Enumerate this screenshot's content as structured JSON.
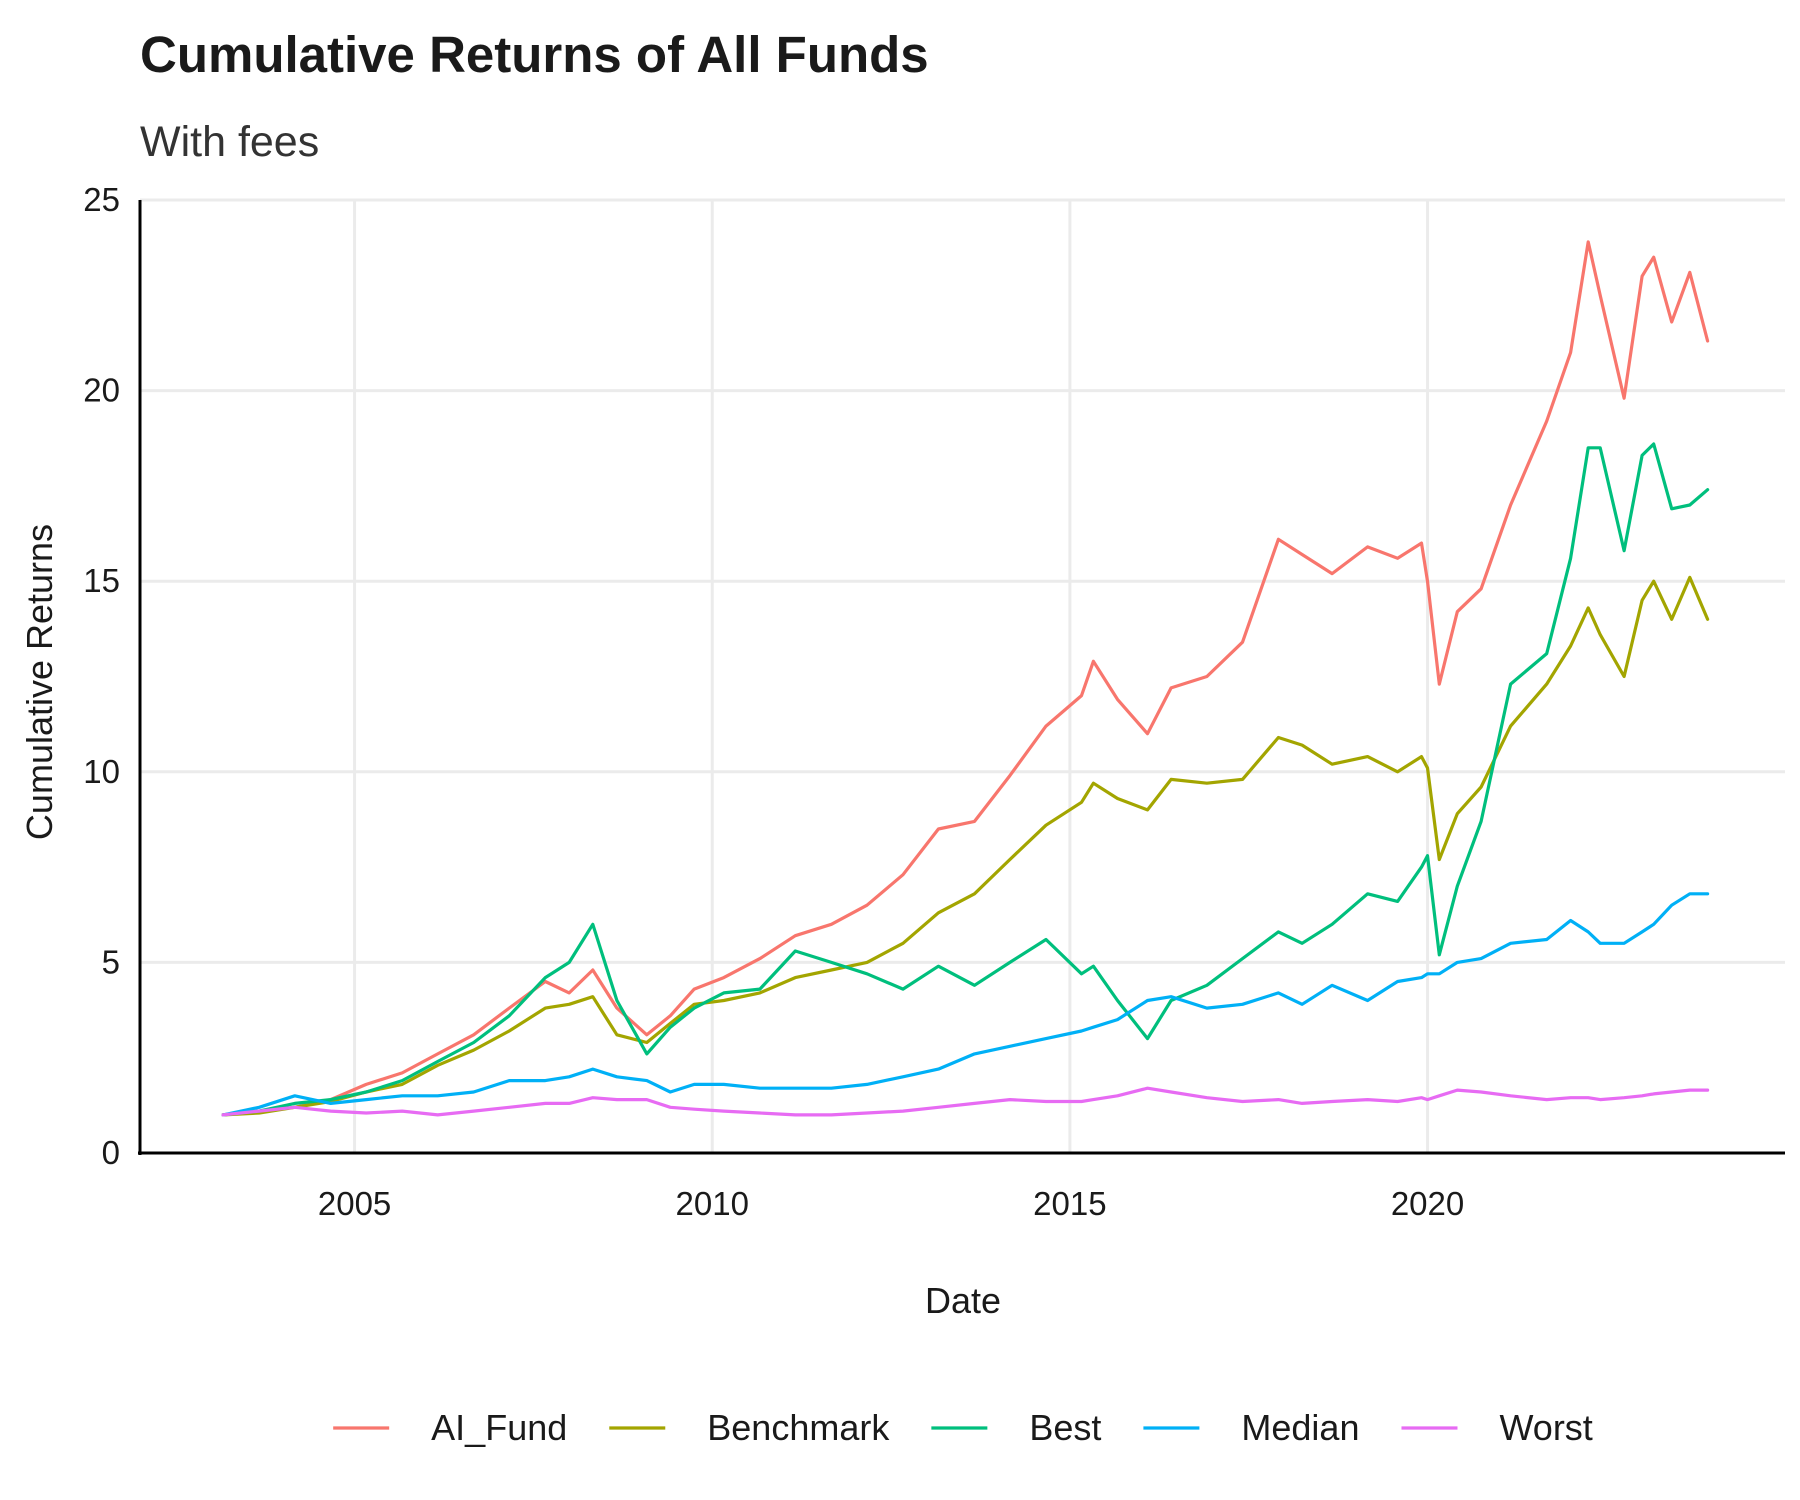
{
  "chart_data": {
    "type": "line",
    "title": "Cumulative Returns of All Funds",
    "subtitle": "With fees",
    "xlabel": "Date",
    "ylabel": "Cumulative Returns",
    "x_ticks": [
      "2005",
      "2010",
      "2015",
      "2020"
    ],
    "y_ticks": [
      "0",
      "5",
      "10",
      "15",
      "20",
      "25"
    ],
    "xlim": [
      "2002-01-01",
      "2024-12-31"
    ],
    "ylim": [
      0,
      25
    ],
    "grid": true,
    "legend_position": "bottom",
    "series": [
      {
        "name": "AI_Fund",
        "color": "#F8766D",
        "points": [
          [
            "2003-03-01",
            1.0
          ],
          [
            "2003-09-01",
            1.1
          ],
          [
            "2004-03-01",
            1.2
          ],
          [
            "2004-09-01",
            1.4
          ],
          [
            "2005-03-01",
            1.8
          ],
          [
            "2005-09-01",
            2.1
          ],
          [
            "2006-03-01",
            2.6
          ],
          [
            "2006-09-01",
            3.1
          ],
          [
            "2007-03-01",
            3.8
          ],
          [
            "2007-09-01",
            4.5
          ],
          [
            "2008-01-01",
            4.2
          ],
          [
            "2008-05-01",
            4.8
          ],
          [
            "2008-09-01",
            3.8
          ],
          [
            "2009-02-01",
            3.1
          ],
          [
            "2009-06-01",
            3.6
          ],
          [
            "2009-10-01",
            4.3
          ],
          [
            "2010-03-01",
            4.6
          ],
          [
            "2010-09-01",
            5.1
          ],
          [
            "2011-03-01",
            5.7
          ],
          [
            "2011-09-01",
            6.0
          ],
          [
            "2012-03-01",
            6.5
          ],
          [
            "2012-09-01",
            7.3
          ],
          [
            "2013-03-01",
            8.5
          ],
          [
            "2013-09-01",
            8.7
          ],
          [
            "2014-03-01",
            9.9
          ],
          [
            "2014-09-01",
            11.2
          ],
          [
            "2015-03-01",
            12.0
          ],
          [
            "2015-05-01",
            12.9
          ],
          [
            "2015-09-01",
            11.9
          ],
          [
            "2016-02-01",
            11.0
          ],
          [
            "2016-06-01",
            12.2
          ],
          [
            "2016-12-01",
            12.5
          ],
          [
            "2017-06-01",
            13.4
          ],
          [
            "2017-12-01",
            16.1
          ],
          [
            "2018-04-01",
            15.7
          ],
          [
            "2018-09-01",
            15.2
          ],
          [
            "2019-03-01",
            15.9
          ],
          [
            "2019-08-01",
            15.6
          ],
          [
            "2019-12-01",
            16.0
          ],
          [
            "2020-01-01",
            15.0
          ],
          [
            "2020-03-01",
            12.3
          ],
          [
            "2020-06-01",
            14.2
          ],
          [
            "2020-10-01",
            14.8
          ],
          [
            "2021-03-01",
            17.0
          ],
          [
            "2021-09-01",
            19.2
          ],
          [
            "2022-01-01",
            21.0
          ],
          [
            "2022-04-01",
            23.9
          ],
          [
            "2022-06-01",
            22.5
          ],
          [
            "2022-10-01",
            19.8
          ],
          [
            "2023-01-01",
            23.0
          ],
          [
            "2023-03-01",
            23.5
          ],
          [
            "2023-06-01",
            21.8
          ],
          [
            "2023-09-01",
            23.1
          ],
          [
            "2023-12-01",
            21.3
          ]
        ]
      },
      {
        "name": "Benchmark",
        "color": "#A3A500",
        "points": [
          [
            "2003-03-01",
            1.0
          ],
          [
            "2003-09-01",
            1.05
          ],
          [
            "2004-03-01",
            1.2
          ],
          [
            "2004-09-01",
            1.35
          ],
          [
            "2005-03-01",
            1.6
          ],
          [
            "2005-09-01",
            1.8
          ],
          [
            "2006-03-01",
            2.3
          ],
          [
            "2006-09-01",
            2.7
          ],
          [
            "2007-03-01",
            3.2
          ],
          [
            "2007-09-01",
            3.8
          ],
          [
            "2008-01-01",
            3.9
          ],
          [
            "2008-05-01",
            4.1
          ],
          [
            "2008-09-01",
            3.1
          ],
          [
            "2009-02-01",
            2.9
          ],
          [
            "2009-06-01",
            3.4
          ],
          [
            "2009-10-01",
            3.9
          ],
          [
            "2010-03-01",
            4.0
          ],
          [
            "2010-09-01",
            4.2
          ],
          [
            "2011-03-01",
            4.6
          ],
          [
            "2011-09-01",
            4.8
          ],
          [
            "2012-03-01",
            5.0
          ],
          [
            "2012-09-01",
            5.5
          ],
          [
            "2013-03-01",
            6.3
          ],
          [
            "2013-09-01",
            6.8
          ],
          [
            "2014-03-01",
            7.7
          ],
          [
            "2014-09-01",
            8.6
          ],
          [
            "2015-03-01",
            9.2
          ],
          [
            "2015-05-01",
            9.7
          ],
          [
            "2015-09-01",
            9.3
          ],
          [
            "2016-02-01",
            9.0
          ],
          [
            "2016-06-01",
            9.8
          ],
          [
            "2016-12-01",
            9.7
          ],
          [
            "2017-06-01",
            9.8
          ],
          [
            "2017-12-01",
            10.9
          ],
          [
            "2018-04-01",
            10.7
          ],
          [
            "2018-09-01",
            10.2
          ],
          [
            "2019-03-01",
            10.4
          ],
          [
            "2019-08-01",
            10.0
          ],
          [
            "2019-12-01",
            10.4
          ],
          [
            "2020-01-01",
            10.1
          ],
          [
            "2020-03-01",
            7.7
          ],
          [
            "2020-06-01",
            8.9
          ],
          [
            "2020-10-01",
            9.6
          ],
          [
            "2021-03-01",
            11.2
          ],
          [
            "2021-09-01",
            12.3
          ],
          [
            "2022-01-01",
            13.3
          ],
          [
            "2022-04-01",
            14.3
          ],
          [
            "2022-06-01",
            13.6
          ],
          [
            "2022-10-01",
            12.5
          ],
          [
            "2023-01-01",
            14.5
          ],
          [
            "2023-03-01",
            15.0
          ],
          [
            "2023-06-01",
            14.0
          ],
          [
            "2023-09-01",
            15.1
          ],
          [
            "2023-12-01",
            14.0
          ]
        ]
      },
      {
        "name": "Best",
        "color": "#00BF7D",
        "points": [
          [
            "2003-03-01",
            1.0
          ],
          [
            "2003-09-01",
            1.1
          ],
          [
            "2004-03-01",
            1.3
          ],
          [
            "2004-09-01",
            1.4
          ],
          [
            "2005-03-01",
            1.6
          ],
          [
            "2005-09-01",
            1.9
          ],
          [
            "2006-03-01",
            2.4
          ],
          [
            "2006-09-01",
            2.9
          ],
          [
            "2007-03-01",
            3.6
          ],
          [
            "2007-09-01",
            4.6
          ],
          [
            "2008-01-01",
            5.0
          ],
          [
            "2008-05-01",
            6.0
          ],
          [
            "2008-09-01",
            4.0
          ],
          [
            "2009-02-01",
            2.6
          ],
          [
            "2009-06-01",
            3.3
          ],
          [
            "2009-10-01",
            3.8
          ],
          [
            "2010-03-01",
            4.2
          ],
          [
            "2010-09-01",
            4.3
          ],
          [
            "2011-03-01",
            5.3
          ],
          [
            "2011-09-01",
            5.0
          ],
          [
            "2012-03-01",
            4.7
          ],
          [
            "2012-09-01",
            4.3
          ],
          [
            "2013-03-01",
            4.9
          ],
          [
            "2013-09-01",
            4.4
          ],
          [
            "2014-03-01",
            5.0
          ],
          [
            "2014-09-01",
            5.6
          ],
          [
            "2015-03-01",
            4.7
          ],
          [
            "2015-05-01",
            4.9
          ],
          [
            "2015-09-01",
            4.0
          ],
          [
            "2016-02-01",
            3.0
          ],
          [
            "2016-06-01",
            4.0
          ],
          [
            "2016-12-01",
            4.4
          ],
          [
            "2017-06-01",
            5.1
          ],
          [
            "2017-12-01",
            5.8
          ],
          [
            "2018-04-01",
            5.5
          ],
          [
            "2018-09-01",
            6.0
          ],
          [
            "2019-03-01",
            6.8
          ],
          [
            "2019-08-01",
            6.6
          ],
          [
            "2019-12-01",
            7.5
          ],
          [
            "2020-01-01",
            7.8
          ],
          [
            "2020-03-01",
            5.2
          ],
          [
            "2020-06-01",
            7.0
          ],
          [
            "2020-10-01",
            8.7
          ],
          [
            "2021-03-01",
            12.3
          ],
          [
            "2021-09-01",
            13.1
          ],
          [
            "2022-01-01",
            15.6
          ],
          [
            "2022-04-01",
            18.5
          ],
          [
            "2022-06-01",
            18.5
          ],
          [
            "2022-10-01",
            15.8
          ],
          [
            "2023-01-01",
            18.3
          ],
          [
            "2023-03-01",
            18.6
          ],
          [
            "2023-06-01",
            16.9
          ],
          [
            "2023-09-01",
            17.0
          ],
          [
            "2023-12-01",
            17.4
          ]
        ]
      },
      {
        "name": "Median",
        "color": "#00B0F6",
        "points": [
          [
            "2003-03-01",
            1.0
          ],
          [
            "2003-09-01",
            1.2
          ],
          [
            "2004-03-01",
            1.5
          ],
          [
            "2004-09-01",
            1.3
          ],
          [
            "2005-03-01",
            1.4
          ],
          [
            "2005-09-01",
            1.5
          ],
          [
            "2006-03-01",
            1.5
          ],
          [
            "2006-09-01",
            1.6
          ],
          [
            "2007-03-01",
            1.9
          ],
          [
            "2007-09-01",
            1.9
          ],
          [
            "2008-01-01",
            2.0
          ],
          [
            "2008-05-01",
            2.2
          ],
          [
            "2008-09-01",
            2.0
          ],
          [
            "2009-02-01",
            1.9
          ],
          [
            "2009-06-01",
            1.6
          ],
          [
            "2009-10-01",
            1.8
          ],
          [
            "2010-03-01",
            1.8
          ],
          [
            "2010-09-01",
            1.7
          ],
          [
            "2011-03-01",
            1.7
          ],
          [
            "2011-09-01",
            1.7
          ],
          [
            "2012-03-01",
            1.8
          ],
          [
            "2012-09-01",
            2.0
          ],
          [
            "2013-03-01",
            2.2
          ],
          [
            "2013-09-01",
            2.6
          ],
          [
            "2014-03-01",
            2.8
          ],
          [
            "2014-09-01",
            3.0
          ],
          [
            "2015-03-01",
            3.2
          ],
          [
            "2015-05-01",
            3.3
          ],
          [
            "2015-09-01",
            3.5
          ],
          [
            "2016-02-01",
            4.0
          ],
          [
            "2016-06-01",
            4.1
          ],
          [
            "2016-12-01",
            3.8
          ],
          [
            "2017-06-01",
            3.9
          ],
          [
            "2017-12-01",
            4.2
          ],
          [
            "2018-04-01",
            3.9
          ],
          [
            "2018-09-01",
            4.4
          ],
          [
            "2019-03-01",
            4.0
          ],
          [
            "2019-08-01",
            4.5
          ],
          [
            "2019-12-01",
            4.6
          ],
          [
            "2020-01-01",
            4.7
          ],
          [
            "2020-03-01",
            4.7
          ],
          [
            "2020-06-01",
            5.0
          ],
          [
            "2020-10-01",
            5.1
          ],
          [
            "2021-03-01",
            5.5
          ],
          [
            "2021-09-01",
            5.6
          ],
          [
            "2022-01-01",
            6.1
          ],
          [
            "2022-04-01",
            5.8
          ],
          [
            "2022-06-01",
            5.5
          ],
          [
            "2022-10-01",
            5.5
          ],
          [
            "2023-01-01",
            5.8
          ],
          [
            "2023-03-01",
            6.0
          ],
          [
            "2023-06-01",
            6.5
          ],
          [
            "2023-09-01",
            6.8
          ],
          [
            "2023-12-01",
            6.8
          ]
        ]
      },
      {
        "name": "Worst",
        "color": "#E76BF3",
        "points": [
          [
            "2003-03-01",
            1.0
          ],
          [
            "2003-09-01",
            1.1
          ],
          [
            "2004-03-01",
            1.2
          ],
          [
            "2004-09-01",
            1.1
          ],
          [
            "2005-03-01",
            1.05
          ],
          [
            "2005-09-01",
            1.1
          ],
          [
            "2006-03-01",
            1.0
          ],
          [
            "2006-09-01",
            1.1
          ],
          [
            "2007-03-01",
            1.2
          ],
          [
            "2007-09-01",
            1.3
          ],
          [
            "2008-01-01",
            1.3
          ],
          [
            "2008-05-01",
            1.45
          ],
          [
            "2008-09-01",
            1.4
          ],
          [
            "2009-02-01",
            1.4
          ],
          [
            "2009-06-01",
            1.2
          ],
          [
            "2009-10-01",
            1.15
          ],
          [
            "2010-03-01",
            1.1
          ],
          [
            "2010-09-01",
            1.05
          ],
          [
            "2011-03-01",
            1.0
          ],
          [
            "2011-09-01",
            1.0
          ],
          [
            "2012-03-01",
            1.05
          ],
          [
            "2012-09-01",
            1.1
          ],
          [
            "2013-03-01",
            1.2
          ],
          [
            "2013-09-01",
            1.3
          ],
          [
            "2014-03-01",
            1.4
          ],
          [
            "2014-09-01",
            1.35
          ],
          [
            "2015-03-01",
            1.35
          ],
          [
            "2015-05-01",
            1.4
          ],
          [
            "2015-09-01",
            1.5
          ],
          [
            "2016-02-01",
            1.7
          ],
          [
            "2016-06-01",
            1.6
          ],
          [
            "2016-12-01",
            1.45
          ],
          [
            "2017-06-01",
            1.35
          ],
          [
            "2017-12-01",
            1.4
          ],
          [
            "2018-04-01",
            1.3
          ],
          [
            "2018-09-01",
            1.35
          ],
          [
            "2019-03-01",
            1.4
          ],
          [
            "2019-08-01",
            1.35
          ],
          [
            "2019-12-01",
            1.45
          ],
          [
            "2020-01-01",
            1.4
          ],
          [
            "2020-03-01",
            1.5
          ],
          [
            "2020-06-01",
            1.65
          ],
          [
            "2020-10-01",
            1.6
          ],
          [
            "2021-03-01",
            1.5
          ],
          [
            "2021-09-01",
            1.4
          ],
          [
            "2022-01-01",
            1.45
          ],
          [
            "2022-04-01",
            1.45
          ],
          [
            "2022-06-01",
            1.4
          ],
          [
            "2022-10-01",
            1.45
          ],
          [
            "2023-01-01",
            1.5
          ],
          [
            "2023-03-01",
            1.55
          ],
          [
            "2023-06-01",
            1.6
          ],
          [
            "2023-09-01",
            1.65
          ],
          [
            "2023-12-01",
            1.65
          ]
        ]
      }
    ]
  }
}
